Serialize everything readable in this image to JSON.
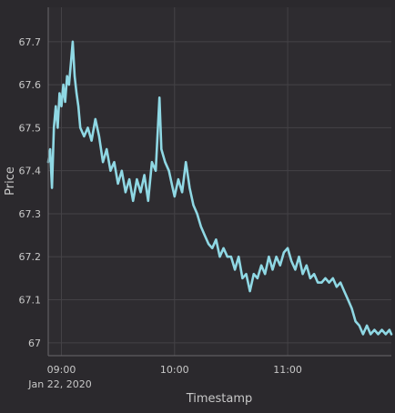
{
  "chart_data": {
    "type": "line",
    "title": "",
    "xlabel": "Timestamp",
    "ylabel": "Price",
    "date_label": "Jan 22, 2020",
    "x_ticks": [
      {
        "label": "09:00",
        "time": "09:00"
      },
      {
        "label": "10:00",
        "time": "10:00"
      },
      {
        "label": "11:00",
        "time": "11:00"
      }
    ],
    "y_ticks": [
      {
        "label": "67",
        "value": 67.0
      },
      {
        "label": "67.1",
        "value": 67.1
      },
      {
        "label": "67.2",
        "value": 67.2
      },
      {
        "label": "67.3",
        "value": 67.3
      },
      {
        "label": "67.4",
        "value": 67.4
      },
      {
        "label": "67.5",
        "value": 67.5
      },
      {
        "label": "67.6",
        "value": 67.6
      },
      {
        "label": "67.7",
        "value": 67.7
      }
    ],
    "xlim": [
      "08:53",
      "11:55"
    ],
    "ylim": [
      66.97,
      67.78
    ],
    "grid": true,
    "series": [
      {
        "color": "#8fd8e4",
        "points": [
          [
            "08:53",
            67.42
          ],
          [
            "08:54",
            67.45
          ],
          [
            "08:55",
            67.36
          ],
          [
            "08:56",
            67.5
          ],
          [
            "08:57",
            67.55
          ],
          [
            "08:58",
            67.5
          ],
          [
            "08:59",
            67.58
          ],
          [
            "09:00",
            67.55
          ],
          [
            "09:01",
            67.6
          ],
          [
            "09:02",
            67.56
          ],
          [
            "09:03",
            67.62
          ],
          [
            "09:04",
            67.6
          ],
          [
            "09:05",
            67.65
          ],
          [
            "09:06",
            67.7
          ],
          [
            "09:07",
            67.62
          ],
          [
            "09:08",
            67.58
          ],
          [
            "09:09",
            67.55
          ],
          [
            "09:10",
            67.5
          ],
          [
            "09:12",
            67.48
          ],
          [
            "09:14",
            67.5
          ],
          [
            "09:16",
            67.47
          ],
          [
            "09:18",
            67.52
          ],
          [
            "09:20",
            67.48
          ],
          [
            "09:22",
            67.42
          ],
          [
            "09:24",
            67.45
          ],
          [
            "09:26",
            67.4
          ],
          [
            "09:28",
            67.42
          ],
          [
            "09:30",
            67.37
          ],
          [
            "09:32",
            67.4
          ],
          [
            "09:34",
            67.35
          ],
          [
            "09:36",
            67.38
          ],
          [
            "09:38",
            67.33
          ],
          [
            "09:40",
            67.38
          ],
          [
            "09:42",
            67.35
          ],
          [
            "09:44",
            67.39
          ],
          [
            "09:46",
            67.33
          ],
          [
            "09:48",
            67.42
          ],
          [
            "09:50",
            67.4
          ],
          [
            "09:52",
            67.57
          ],
          [
            "09:53",
            67.45
          ],
          [
            "09:55",
            67.42
          ],
          [
            "09:57",
            67.4
          ],
          [
            "09:59",
            67.36
          ],
          [
            "10:00",
            67.34
          ],
          [
            "10:02",
            67.38
          ],
          [
            "10:04",
            67.35
          ],
          [
            "10:06",
            67.42
          ],
          [
            "10:08",
            67.36
          ],
          [
            "10:10",
            67.32
          ],
          [
            "10:12",
            67.3
          ],
          [
            "10:14",
            67.27
          ],
          [
            "10:16",
            67.25
          ],
          [
            "10:18",
            67.23
          ],
          [
            "10:20",
            67.22
          ],
          [
            "10:22",
            67.24
          ],
          [
            "10:24",
            67.2
          ],
          [
            "10:26",
            67.22
          ],
          [
            "10:28",
            67.2
          ],
          [
            "10:30",
            67.2
          ],
          [
            "10:32",
            67.17
          ],
          [
            "10:34",
            67.2
          ],
          [
            "10:36",
            67.15
          ],
          [
            "10:38",
            67.16
          ],
          [
            "10:40",
            67.12
          ],
          [
            "10:42",
            67.16
          ],
          [
            "10:44",
            67.15
          ],
          [
            "10:46",
            67.18
          ],
          [
            "10:48",
            67.16
          ],
          [
            "10:50",
            67.2
          ],
          [
            "10:52",
            67.17
          ],
          [
            "10:54",
            67.2
          ],
          [
            "10:56",
            67.18
          ],
          [
            "10:58",
            67.21
          ],
          [
            "11:00",
            67.22
          ],
          [
            "11:02",
            67.19
          ],
          [
            "11:04",
            67.17
          ],
          [
            "11:06",
            67.2
          ],
          [
            "11:08",
            67.16
          ],
          [
            "11:10",
            67.18
          ],
          [
            "11:12",
            67.15
          ],
          [
            "11:14",
            67.16
          ],
          [
            "11:16",
            67.14
          ],
          [
            "11:18",
            67.14
          ],
          [
            "11:20",
            67.15
          ],
          [
            "11:22",
            67.14
          ],
          [
            "11:24",
            67.15
          ],
          [
            "11:26",
            67.13
          ],
          [
            "11:28",
            67.14
          ],
          [
            "11:30",
            67.12
          ],
          [
            "11:32",
            67.1
          ],
          [
            "11:34",
            67.08
          ],
          [
            "11:36",
            67.05
          ],
          [
            "11:38",
            67.04
          ],
          [
            "11:40",
            67.02
          ],
          [
            "11:42",
            67.04
          ],
          [
            "11:44",
            67.02
          ],
          [
            "11:46",
            67.03
          ],
          [
            "11:48",
            67.02
          ],
          [
            "11:50",
            67.03
          ],
          [
            "11:52",
            67.02
          ],
          [
            "11:54",
            67.03
          ],
          [
            "11:55",
            67.02
          ]
        ]
      }
    ]
  }
}
